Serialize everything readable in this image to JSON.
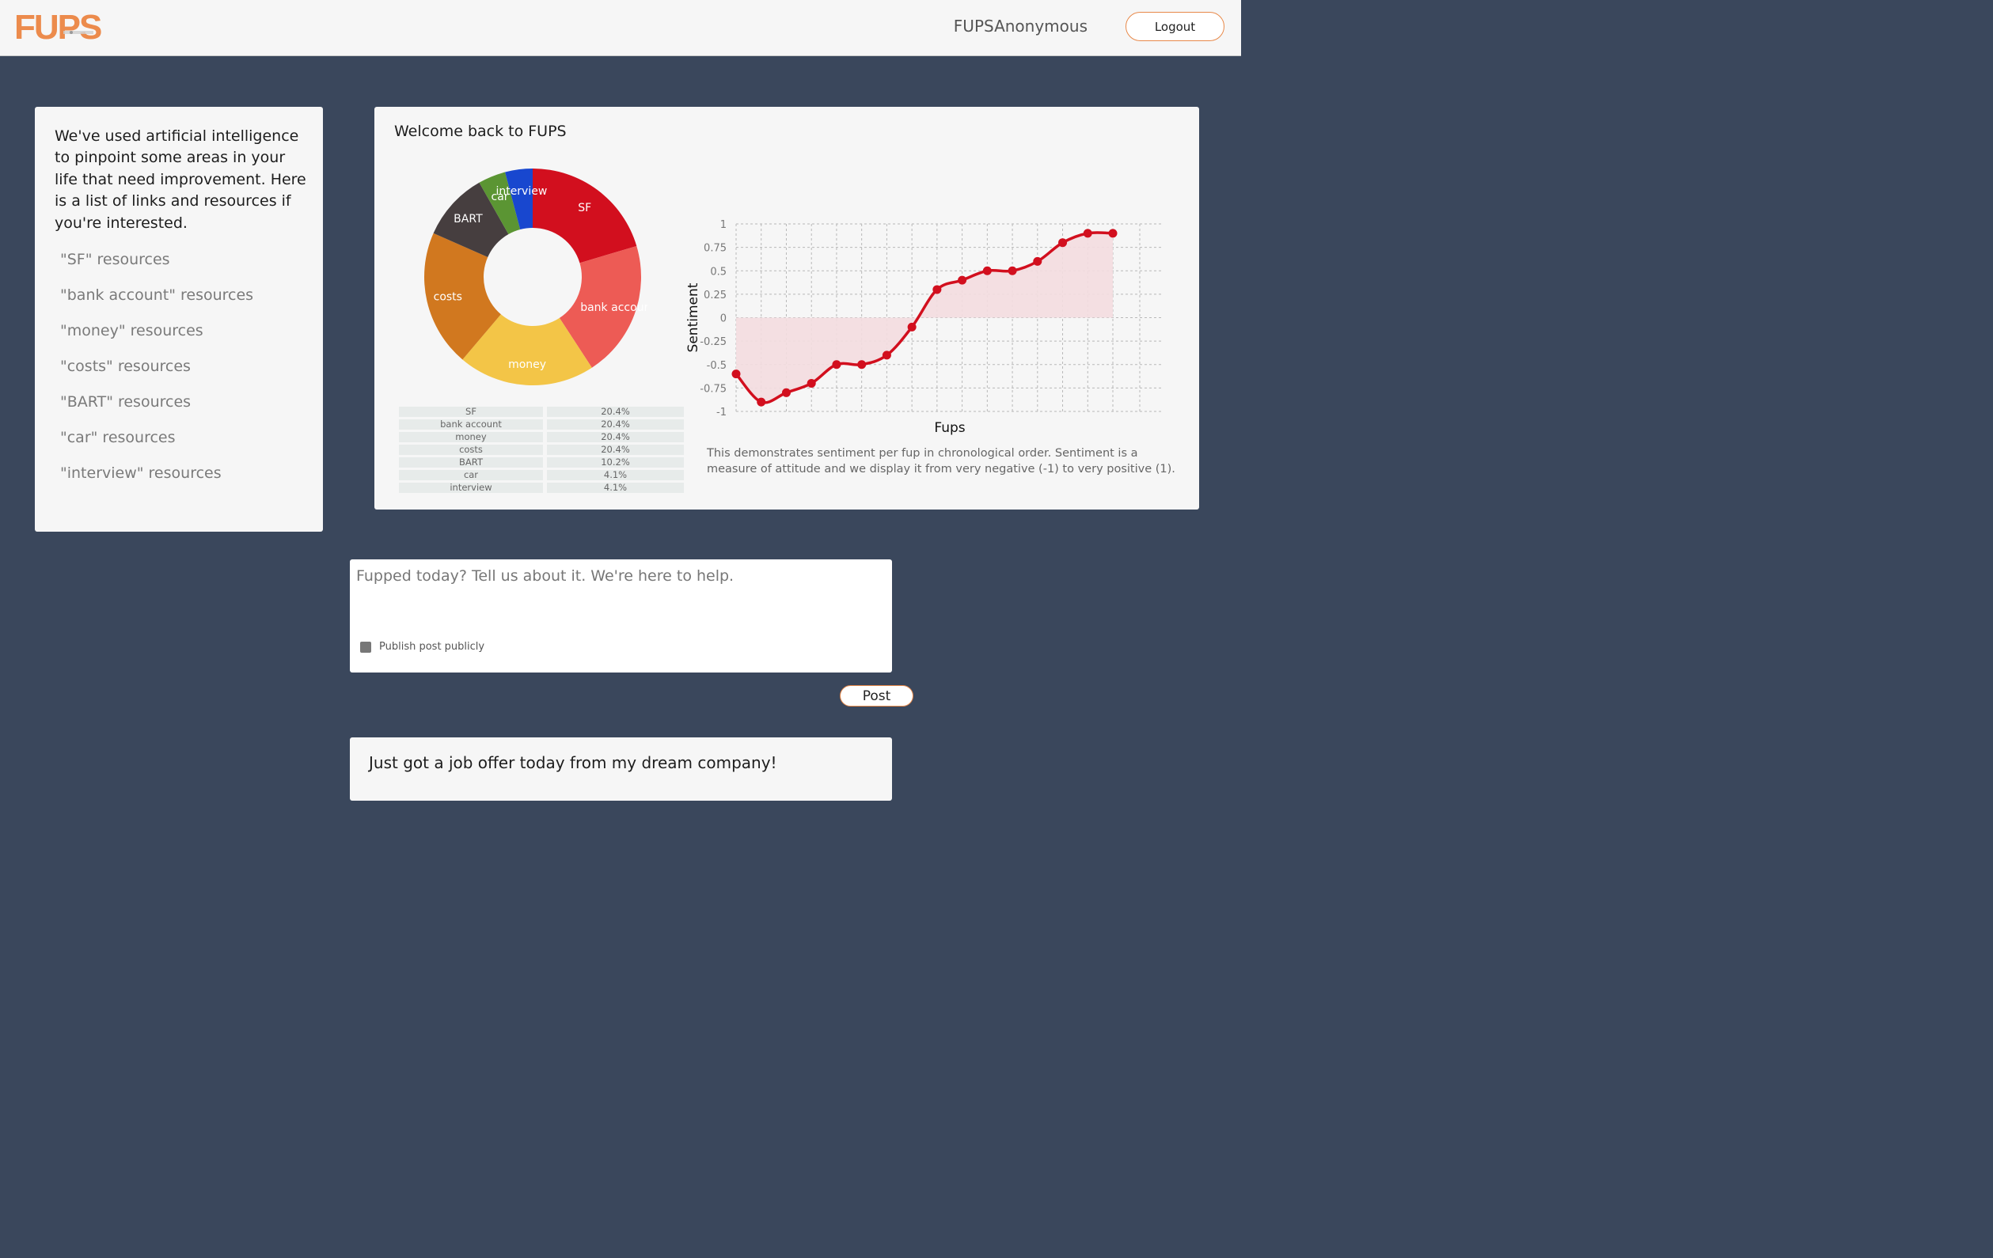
{
  "header": {
    "logo_text": "FUPS",
    "username": "FUPSAnonymous",
    "logout_label": "Logout"
  },
  "resources": {
    "intro": "We've used artificial intelligence to pinpoint some areas in your life that need improvement. Here is a list of links and resources if you're interested.",
    "links": [
      "\"SF\" resources",
      "\"bank account\" resources",
      "\"money\" resources",
      "\"costs\" resources",
      "\"BART\" resources",
      "\"car\" resources",
      "\"interview\" resources"
    ]
  },
  "dashboard": {
    "title": "Welcome back to FUPS",
    "caption": "This demonstrates sentiment per fup in chronological order. Sentiment is a measure of attitude and we display it from very negative (-1) to very positive (1)."
  },
  "composer": {
    "placeholder": "Fupped today? Tell us about it. We're here to help.",
    "publish_label": "Publish post publicly",
    "post_label": "Post"
  },
  "feed": {
    "first_post": "Just got a job offer today from my dream company!"
  },
  "chart_data": [
    {
      "type": "pie",
      "variant": "donut",
      "slices": [
        {
          "label": "SF",
          "percent": 20.4,
          "display": "20.4%",
          "color": "#d20f1e"
        },
        {
          "label": "bank account",
          "percent": 20.4,
          "display": "20.4%",
          "color": "#ed5b55"
        },
        {
          "label": "money",
          "percent": 20.4,
          "display": "20.4%",
          "color": "#f3c547"
        },
        {
          "label": "costs",
          "percent": 20.4,
          "display": "20.4%",
          "color": "#d1781f"
        },
        {
          "label": "BART",
          "percent": 10.2,
          "display": "10.2%",
          "color": "#463e3f"
        },
        {
          "label": "car",
          "percent": 4.1,
          "display": "4.1%",
          "color": "#5b9533"
        },
        {
          "label": "interview",
          "percent": 4.1,
          "display": "4.1%",
          "color": "#1847cf"
        }
      ],
      "slice_labels": [
        "SF",
        "bank accour",
        "money",
        "costs",
        "BART",
        "car",
        "interview"
      ]
    },
    {
      "type": "line",
      "xlabel": "Fups",
      "ylabel": "Sentiment",
      "ylim": [
        -1,
        1
      ],
      "yticks": [
        "1",
        "0.75",
        "0.5",
        "0.25",
        "0",
        "-0.25",
        "-0.5",
        "-0.75",
        "-1"
      ],
      "grid": true,
      "fill_to_zero": true,
      "color": "#d20f1e",
      "fill_color": "#f4dde0",
      "x": [
        1,
        2,
        3,
        4,
        5,
        6,
        7,
        8,
        9,
        10,
        11,
        12,
        13,
        14,
        15,
        16
      ],
      "values": [
        -0.6,
        -0.9,
        -0.8,
        -0.7,
        -0.5,
        -0.5,
        -0.4,
        -0.1,
        0.3,
        0.4,
        0.5,
        0.5,
        0.6,
        0.8,
        0.9,
        0.9
      ]
    }
  ]
}
